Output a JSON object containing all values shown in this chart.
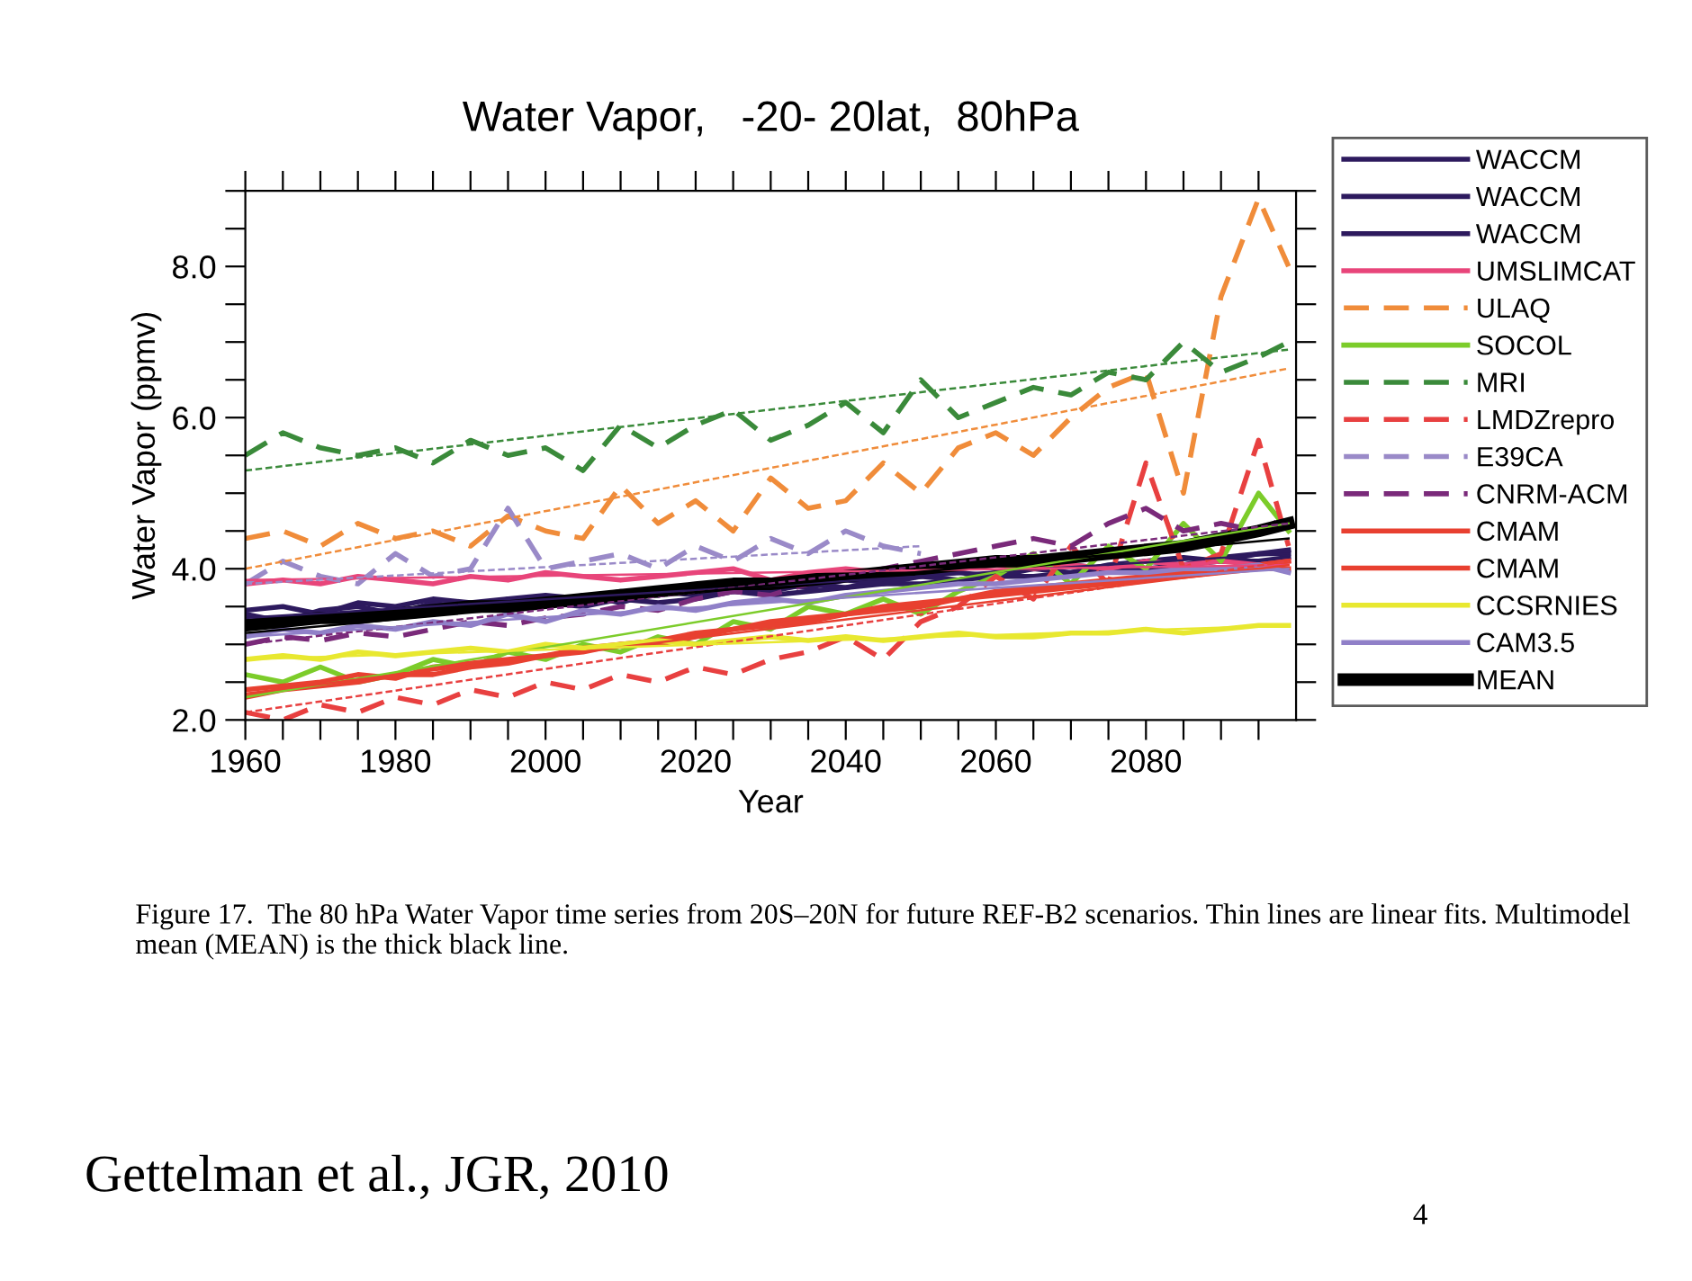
{
  "chart_data": {
    "type": "line",
    "title": "Water Vapor,   -20- 20lat,  80hPa",
    "xlabel": "Year",
    "ylabel": "Water Vapor (ppmv)",
    "x": [
      1960,
      1965,
      1970,
      1975,
      1980,
      1985,
      1990,
      1995,
      2000,
      2005,
      2010,
      2015,
      2020,
      2025,
      2030,
      2035,
      2040,
      2045,
      2050,
      2055,
      2060,
      2065,
      2070,
      2075,
      2080,
      2085,
      2090,
      2095,
      2099
    ],
    "xlim": [
      1960,
      2100
    ],
    "xticks": [
      1960,
      {
        "value": 1965,
        "label": null
      },
      {
        "value": 1970,
        "label": null
      },
      {
        "value": 1975,
        "label": null
      },
      1980,
      {
        "value": 1985,
        "label": null
      },
      {
        "value": 1990,
        "label": null
      },
      {
        "value": 1995,
        "label": null
      },
      2000,
      {
        "value": 2005,
        "label": null
      },
      {
        "value": 2010,
        "label": null
      },
      {
        "value": 2015,
        "label": null
      },
      2020,
      {
        "value": 2025,
        "label": null
      },
      {
        "value": 2030,
        "label": null
      },
      {
        "value": 2035,
        "label": null
      },
      2040,
      {
        "value": 2045,
        "label": null
      },
      {
        "value": 2050,
        "label": null
      },
      {
        "value": 2055,
        "label": null
      },
      2060,
      {
        "value": 2065,
        "label": null
      },
      {
        "value": 2070,
        "label": null
      },
      {
        "value": 2075,
        "label": null
      },
      2080,
      {
        "value": 2085,
        "label": null
      },
      {
        "value": 2090,
        "label": null
      },
      {
        "value": 2095,
        "label": null
      }
    ],
    "ylim": [
      2,
      9
    ],
    "yticks": [
      {
        "value": 2,
        "label": "2.0"
      },
      {
        "value": 2.5,
        "label": null
      },
      {
        "value": 3,
        "label": null
      },
      {
        "value": 3.5,
        "label": null
      },
      {
        "value": 4,
        "label": "4.0"
      },
      {
        "value": 4.5,
        "label": null
      },
      {
        "value": 5,
        "label": null
      },
      {
        "value": 5.5,
        "label": null
      },
      {
        "value": 6,
        "label": "6.0"
      },
      {
        "value": 6.5,
        "label": null
      },
      {
        "value": 7,
        "label": null
      },
      {
        "value": 7.5,
        "label": null
      },
      {
        "value": 8,
        "label": "8.0"
      },
      {
        "value": 8.5,
        "label": null
      },
      {
        "value": 9,
        "label": null
      }
    ],
    "grid": false,
    "legend": "right",
    "series": [
      {
        "name": "WACCM",
        "color": "#2d1a5e",
        "line_style": "solid",
        "values": [
          3.3,
          3.35,
          3.4,
          3.3,
          3.45,
          3.4,
          3.5,
          3.45,
          3.55,
          3.5,
          3.6,
          3.55,
          3.6,
          3.7,
          3.65,
          3.7,
          3.75,
          3.8,
          3.8,
          3.85,
          3.9,
          3.9,
          3.95,
          4.0,
          4.0,
          4.05,
          4.1,
          4.1,
          4.15
        ]
      },
      {
        "name": "WACCM",
        "color": "#2d1a5e",
        "line_style": "solid",
        "values": [
          3.4,
          3.3,
          3.45,
          3.5,
          3.4,
          3.55,
          3.45,
          3.6,
          3.5,
          3.65,
          3.55,
          3.7,
          3.65,
          3.75,
          3.7,
          3.8,
          3.75,
          3.85,
          3.9,
          3.85,
          3.95,
          4.0,
          3.95,
          4.05,
          4.1,
          4.05,
          4.15,
          4.2,
          4.2
        ]
      },
      {
        "name": "WACCM",
        "color": "#2d1a5e",
        "line_style": "solid",
        "values": [
          3.45,
          3.5,
          3.4,
          3.55,
          3.5,
          3.6,
          3.55,
          3.6,
          3.65,
          3.6,
          3.7,
          3.65,
          3.75,
          3.7,
          3.8,
          3.75,
          3.85,
          3.8,
          3.9,
          3.95,
          3.9,
          4.0,
          4.05,
          4.0,
          4.1,
          4.15,
          4.1,
          4.2,
          4.25
        ]
      },
      {
        "name": "UMSLIMCAT",
        "color": "#e8457a",
        "line_style": "solid",
        "values": [
          3.8,
          3.85,
          3.8,
          3.9,
          3.85,
          3.8,
          3.9,
          3.85,
          3.95,
          3.9,
          3.85,
          3.9,
          3.95,
          4.0,
          3.85,
          3.95,
          4.0,
          3.95,
          4.0,
          4.0,
          4.05,
          4.0,
          4.05,
          4.0,
          4.1,
          4.05,
          4.1,
          4.05,
          4.1
        ]
      },
      {
        "name": "ULAQ",
        "color": "#f08c3a",
        "line_style": "dashed",
        "values": [
          4.4,
          4.5,
          4.3,
          4.6,
          4.4,
          4.5,
          4.3,
          4.7,
          4.5,
          4.4,
          5.1,
          4.6,
          4.9,
          4.5,
          5.2,
          4.8,
          4.9,
          5.4,
          5.0,
          5.6,
          5.8,
          5.5,
          6.0,
          6.4,
          6.6,
          5.0,
          7.6,
          8.9,
          8.0
        ]
      },
      {
        "name": "SOCOL",
        "color": "#7ccc2a",
        "line_style": "solid",
        "values": [
          2.6,
          2.5,
          2.7,
          2.5,
          2.6,
          2.8,
          2.7,
          2.9,
          2.8,
          3.0,
          2.9,
          3.1,
          3.0,
          3.3,
          3.2,
          3.5,
          3.4,
          3.6,
          3.4,
          3.7,
          3.9,
          4.2,
          3.8,
          4.3,
          4.0,
          4.6,
          4.1,
          5.0,
          4.5
        ]
      },
      {
        "name": "MRI",
        "color": "#3a8a3a",
        "line_style": "dashed",
        "values": [
          5.5,
          5.8,
          5.6,
          5.5,
          5.6,
          5.4,
          5.7,
          5.5,
          5.6,
          5.3,
          5.9,
          5.6,
          5.9,
          6.1,
          5.7,
          5.9,
          6.2,
          5.8,
          6.5,
          6.0,
          6.2,
          6.4,
          6.3,
          6.6,
          6.5,
          7.0,
          6.6,
          6.8,
          7.0
        ]
      },
      {
        "name": "LMDZrepro",
        "color": "#e84040",
        "line_style": "dashed",
        "values": [
          2.1,
          2.0,
          2.2,
          2.1,
          2.3,
          2.2,
          2.4,
          2.3,
          2.5,
          2.4,
          2.6,
          2.5,
          2.7,
          2.6,
          2.8,
          2.9,
          3.1,
          2.8,
          3.3,
          3.5,
          3.9,
          3.6,
          4.3,
          3.8,
          5.4,
          4.0,
          4.2,
          5.7,
          4.3
        ]
      },
      {
        "name": "E39CA",
        "color": "#9a8ac8",
        "line_style": "dashed",
        "values": [
          3.8,
          4.1,
          3.9,
          3.8,
          4.2,
          3.9,
          4.0,
          4.8,
          4.0,
          4.1,
          4.2,
          4.0,
          4.3,
          4.1,
          4.4,
          4.2,
          4.5,
          4.3,
          4.2,
          null,
          null,
          null,
          null,
          null,
          null,
          null,
          null,
          null,
          null
        ]
      },
      {
        "name": "CNRM-ACM",
        "color": "#7a2a7a",
        "line_style": "dashed",
        "values": [
          3.0,
          3.1,
          3.05,
          3.15,
          3.1,
          3.2,
          3.3,
          3.25,
          3.35,
          3.4,
          3.5,
          3.45,
          3.6,
          3.7,
          3.65,
          3.8,
          3.9,
          4.0,
          4.1,
          4.2,
          4.3,
          4.4,
          4.3,
          4.6,
          4.8,
          4.5,
          4.6,
          4.5,
          4.7
        ]
      },
      {
        "name": "CMAM",
        "color": "#e84030",
        "line_style": "solid",
        "values": [
          2.4,
          2.45,
          2.5,
          2.6,
          2.55,
          2.7,
          2.75,
          2.8,
          2.85,
          2.95,
          3.0,
          3.05,
          3.15,
          3.2,
          3.3,
          3.35,
          3.4,
          3.5,
          3.55,
          3.6,
          3.7,
          3.75,
          3.8,
          3.85,
          3.9,
          3.95,
          4.0,
          4.05,
          4.1
        ]
      },
      {
        "name": "CMAM",
        "color": "#e84030",
        "line_style": "solid",
        "values": [
          2.3,
          2.4,
          2.45,
          2.5,
          2.6,
          2.6,
          2.7,
          2.75,
          2.85,
          2.9,
          3.0,
          3.0,
          3.1,
          3.2,
          3.25,
          3.3,
          3.4,
          3.45,
          3.5,
          3.6,
          3.65,
          3.7,
          3.75,
          3.8,
          3.85,
          3.9,
          3.95,
          4.0,
          4.0
        ]
      },
      {
        "name": "CCSRNIES",
        "color": "#e8e830",
        "line_style": "solid",
        "values": [
          2.8,
          2.85,
          2.8,
          2.9,
          2.85,
          2.9,
          2.95,
          2.9,
          3.0,
          2.95,
          3.0,
          3.05,
          3.0,
          3.05,
          3.1,
          3.05,
          3.1,
          3.05,
          3.1,
          3.15,
          3.1,
          3.1,
          3.15,
          3.15,
          3.2,
          3.15,
          3.2,
          3.25,
          3.25
        ]
      },
      {
        "name": "CAM3.5",
        "color": "#9080c8",
        "line_style": "solid",
        "values": [
          3.1,
          3.2,
          3.15,
          3.25,
          3.2,
          3.3,
          3.25,
          3.4,
          3.3,
          3.45,
          3.4,
          3.5,
          3.45,
          3.55,
          3.6,
          3.55,
          3.65,
          3.7,
          3.75,
          3.8,
          3.8,
          3.85,
          3.9,
          3.95,
          3.95,
          4.0,
          4.0,
          4.05,
          3.95
        ]
      },
      {
        "name": "MEAN",
        "color": "#000000",
        "line_style": "solid",
        "values": [
          3.25,
          3.3,
          3.35,
          3.35,
          3.4,
          3.45,
          3.5,
          3.5,
          3.55,
          3.6,
          3.65,
          3.7,
          3.75,
          3.8,
          3.8,
          3.85,
          3.9,
          3.95,
          4.0,
          4.05,
          4.1,
          4.1,
          4.15,
          4.2,
          4.25,
          4.3,
          4.4,
          4.5,
          4.6
        ]
      },
      {
        "color": "#2d1a5e",
        "line_style": "solid",
        "x": [
          1960,
          2099
        ],
        "values": [
          3.35,
          4.2
        ]
      },
      {
        "color": "#e8457a",
        "line_style": "solid",
        "x": [
          1960,
          2099
        ],
        "values": [
          3.85,
          4.05
        ]
      },
      {
        "color": "#f08c3a",
        "line_style": "dashed",
        "x": [
          1960,
          2099
        ],
        "values": [
          4.0,
          6.65
        ]
      },
      {
        "color": "#7ccc2a",
        "line_style": "solid",
        "x": [
          1960,
          2099
        ],
        "values": [
          2.3,
          4.6
        ]
      },
      {
        "color": "#3a8a3a",
        "line_style": "dashed",
        "x": [
          1960,
          2099
        ],
        "values": [
          5.3,
          6.9
        ]
      },
      {
        "color": "#e84040",
        "line_style": "dashed",
        "x": [
          1960,
          2099
        ],
        "values": [
          2.1,
          4.1
        ]
      },
      {
        "color": "#9a8ac8",
        "line_style": "dashed",
        "x": [
          1960,
          2050
        ],
        "values": [
          3.8,
          4.3
        ]
      },
      {
        "color": "#7a2a7a",
        "line_style": "dashed",
        "x": [
          1960,
          2099
        ],
        "values": [
          3.0,
          4.6
        ]
      },
      {
        "color": "#e84030",
        "line_style": "solid",
        "x": [
          1960,
          2099
        ],
        "values": [
          2.35,
          4.05
        ]
      },
      {
        "color": "#e8e830",
        "line_style": "solid",
        "x": [
          1960,
          2099
        ],
        "values": [
          2.8,
          3.25
        ]
      },
      {
        "color": "#9080c8",
        "line_style": "solid",
        "x": [
          1960,
          2099
        ],
        "values": [
          3.1,
          4.0
        ]
      },
      {
        "color": "#000000",
        "line_style": "solid",
        "x": [
          1960,
          2099
        ],
        "values": [
          3.15,
          4.4
        ]
      }
    ],
    "annotations": [
      "Figure 17.  The 80 hPa Water Vapor time series from 20S–20N for future REF-B2 scenarios. Thin lines are linear fits. Multimodel mean (MEAN) is the thick black line.",
      "Gettelman et al., JGR, 2010",
      "4"
    ]
  }
}
